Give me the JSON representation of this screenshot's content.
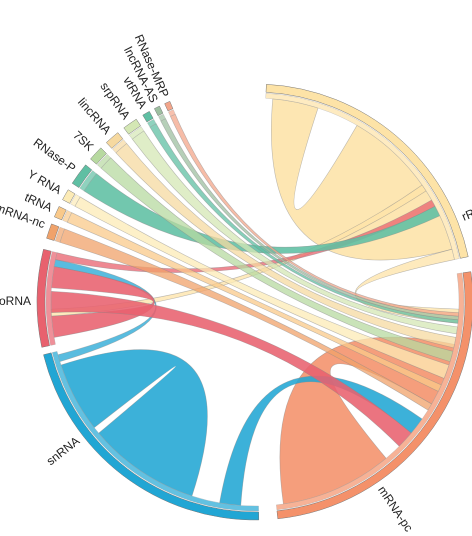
{
  "chart_data": {
    "type": "chord",
    "segments": [
      {
        "id": "rRNA",
        "label": "rRNA",
        "color": "#fde3a7"
      },
      {
        "id": "mRNA-pc",
        "label": "mRNA-pc",
        "color": "#f4916a"
      },
      {
        "id": "snRNA",
        "label": "snRNA",
        "color": "#21a6d4"
      },
      {
        "id": "snoRNA",
        "label": "snoRNA",
        "color": "#e8616e"
      },
      {
        "id": "mRNA-nc",
        "label": "mRNA-nc",
        "color": "#f0a26a"
      },
      {
        "id": "tRNA",
        "label": "tRNA",
        "color": "#f9c98a"
      },
      {
        "id": "Y RNA",
        "label": "Y RNA",
        "color": "#fcebb6"
      },
      {
        "id": "RNase-P",
        "label": "RNase-P",
        "color": "#5fbfa3"
      },
      {
        "id": "7SK",
        "label": "7SK",
        "color": "#b7d9a0"
      },
      {
        "id": "lincRNA",
        "label": "lincRNA",
        "color": "#f6d9a0"
      },
      {
        "id": "srpRNA",
        "label": "srpRNA",
        "color": "#d4e7b4"
      },
      {
        "id": "vtRNA",
        "label": "vtRNA",
        "color": "#5fbfa3"
      },
      {
        "id": "lncRNA-AS",
        "label": "lncRNA-AS",
        "color": "#9dbfa0"
      },
      {
        "id": "RNase-MRP",
        "label": "RNase-MRP",
        "color": "#f3a58a"
      }
    ],
    "links": [
      {
        "source": "rRNA",
        "target": "rRNA"
      },
      {
        "source": "rRNA",
        "target": "mRNA-pc"
      },
      {
        "source": "rRNA",
        "target": "snoRNA"
      },
      {
        "source": "mRNA-pc",
        "target": "mRNA-pc"
      },
      {
        "source": "snRNA",
        "target": "snRNA"
      },
      {
        "source": "snRNA",
        "target": "mRNA-pc"
      },
      {
        "source": "snRNA",
        "target": "snoRNA"
      },
      {
        "source": "snoRNA",
        "target": "snoRNA"
      },
      {
        "source": "snoRNA",
        "target": "mRNA-pc"
      },
      {
        "source": "snoRNA",
        "target": "rRNA"
      },
      {
        "source": "mRNA-nc",
        "target": "mRNA-pc"
      },
      {
        "source": "tRNA",
        "target": "mRNA-pc"
      },
      {
        "source": "Y RNA",
        "target": "mRNA-pc"
      },
      {
        "source": "RNase-P",
        "target": "rRNA"
      },
      {
        "source": "7SK",
        "target": "mRNA-pc"
      },
      {
        "source": "lincRNA",
        "target": "mRNA-pc"
      },
      {
        "source": "srpRNA",
        "target": "mRNA-pc"
      },
      {
        "source": "vtRNA",
        "target": "mRNA-pc"
      },
      {
        "source": "lncRNA-AS",
        "target": "mRNA-pc"
      },
      {
        "source": "RNase-MRP",
        "target": "mRNA-pc"
      }
    ]
  }
}
